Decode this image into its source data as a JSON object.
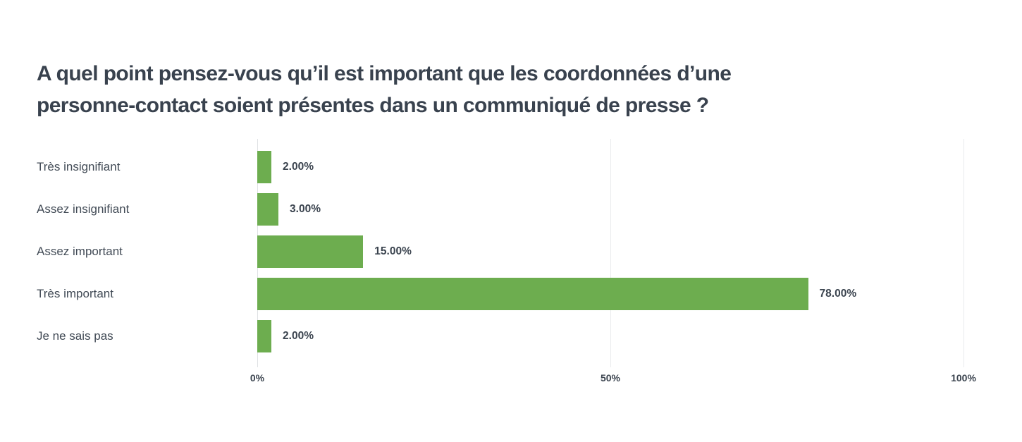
{
  "chart": {
    "title_lines": [
      "A quel point pensez-vous qu’il est important que les coordonnées d’une",
      "personne-contact soient présentes dans un communiqué de presse ?"
    ]
  },
  "chart_data": {
    "type": "bar",
    "orientation": "horizontal",
    "title": "A quel point pensez-vous qu’il est important que les coordonnées d’une personne-contact soient présentes dans un communiqué de presse ?",
    "categories": [
      "Très insignifiant",
      "Assez insignifiant",
      "Assez important",
      "Très important",
      "Je ne sais pas"
    ],
    "values": [
      2,
      3,
      15,
      78,
      2
    ],
    "value_labels": [
      "2.00%",
      "3.00%",
      "15.00%",
      "78.00%",
      "2.00%"
    ],
    "xlim": [
      0,
      100
    ],
    "x_ticks": [
      {
        "value": 0,
        "label": "0%"
      },
      {
        "value": 50,
        "label": "50%"
      },
      {
        "value": 100,
        "label": "100%"
      }
    ],
    "xlabel": "",
    "ylabel": "",
    "grid": true,
    "legend": false,
    "bar_color": "#6dad4f",
    "background_color": "#ffffff",
    "text_color": "#39424e"
  }
}
